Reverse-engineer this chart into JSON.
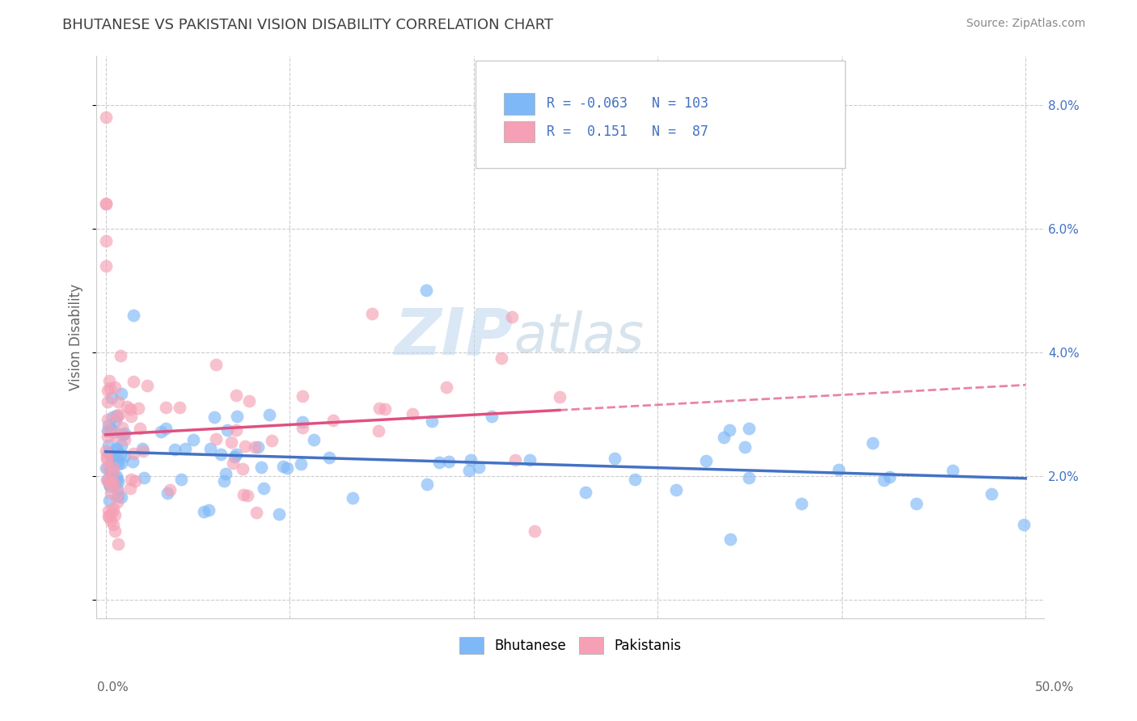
{
  "title": "BHUTANESE VS PAKISTANI VISION DISABILITY CORRELATION CHART",
  "source": "Source: ZipAtlas.com",
  "ylabel": "Vision Disability",
  "xtick_labels": [
    "0.0%",
    "50.0%"
  ],
  "ytick_right_labels": [
    "2.0%",
    "4.0%",
    "6.0%",
    "8.0%"
  ],
  "bhutanese_color": "#7EB8F7",
  "pakistani_color": "#F5A0B5",
  "bhutanese_R": -0.063,
  "bhutanese_N": 103,
  "pakistani_R": 0.151,
  "pakistani_N": 87,
  "bhutanese_line_color": "#4472C4",
  "pakistani_line_color": "#E05080",
  "watermark_zip": "ZIP",
  "watermark_atlas": "atlas",
  "background_color": "#FFFFFF",
  "title_color": "#404040",
  "grid_color": "#CCCCCC",
  "right_axis_color": "#4472C4",
  "legend_label_bhutanese": "Bhutanese",
  "legend_label_pakistani": "Pakistanis",
  "source_color": "#888888"
}
